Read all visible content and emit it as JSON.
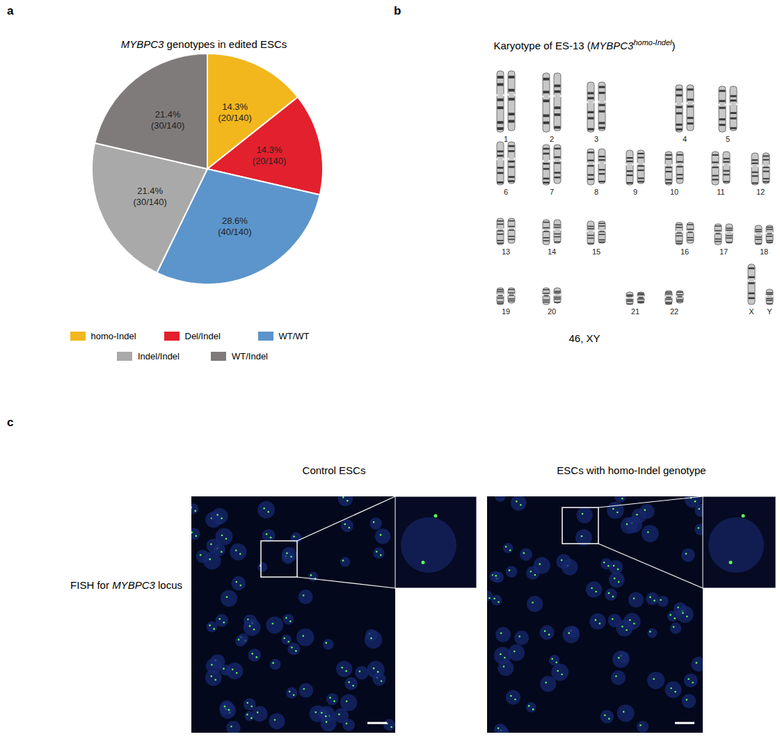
{
  "chart_data": {
    "type": "pie",
    "panel": "a",
    "title": "MYBPC3 genotypes in edited ESCs",
    "gene": "MYBPC3",
    "categories": [
      "homo-Indel",
      "Del/Indel",
      "WT/WT",
      "Indel/Indel",
      "WT/Indel"
    ],
    "values": [
      14.3,
      14.3,
      28.6,
      21.4,
      21.4
    ],
    "value_labels": [
      "14.3%\n(20/140)",
      "14.3%\n(20/140)",
      "28.6%\n(40/140)",
      "21.4%\n(30/140)",
      "21.4%\n(30/140)"
    ],
    "colors": [
      "#f2b71c",
      "#e3202d",
      "#5b95cb",
      "#a9a9a9",
      "#7f7b7b"
    ],
    "data_labels": true,
    "legend": "bottom"
  },
  "karyotype": {
    "panel": "b",
    "title_parts": [
      {
        "text": "Karyotype of ES-13 ("
      },
      {
        "text": "MYBPC3",
        "style": "italic"
      },
      {
        "text": "homo-Indel",
        "style": "superscript"
      },
      {
        "text": ")"
      }
    ],
    "chromosomes": [
      "1",
      "2",
      "3",
      "4",
      "5",
      "6",
      "7",
      "8",
      "9",
      "10",
      "11",
      "12",
      "13",
      "14",
      "15",
      "16",
      "17",
      "18",
      "19",
      "20",
      "21",
      "22",
      "X",
      "Y"
    ],
    "caption": "46, XY"
  },
  "fish": {
    "panel": "c",
    "gene": "MYBPC3",
    "row_label": "FISH for MYBPC3 locus",
    "columns": [
      "Control ESCs",
      "ESCs with homo-Indel genotype"
    ]
  }
}
